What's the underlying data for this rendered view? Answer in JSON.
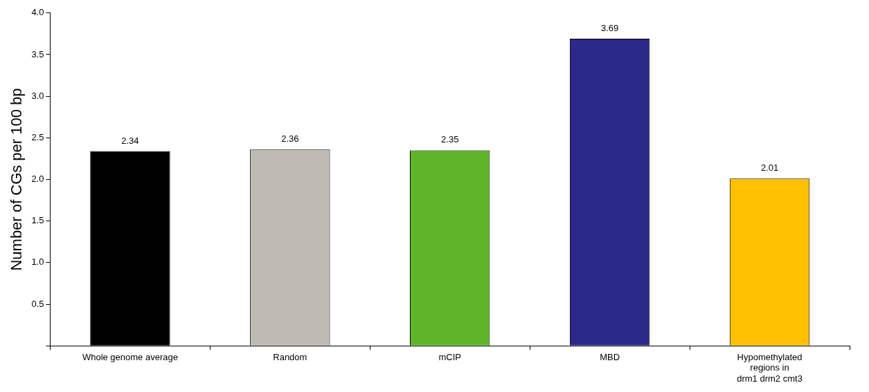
{
  "chart_data": {
    "type": "bar",
    "ylabel": "Number of CGs per 100 bp",
    "categories": [
      "Whole genome average",
      "Random",
      "mCIP",
      "MBD",
      "Hypomethylated regions in drm1 drm2 cmt3"
    ],
    "values": [
      2.34,
      2.36,
      2.35,
      3.69,
      2.01
    ],
    "colors": [
      "#000000",
      "#bfbab3",
      "#5fb52a",
      "#2b2a8a",
      "#ffc000"
    ],
    "ylim": [
      0,
      4.0
    ],
    "yticks": [
      {
        "value": 0,
        "label": null
      },
      {
        "value": 0.5,
        "label": "0.5"
      },
      {
        "value": 1.0,
        "label": "1.0"
      },
      {
        "value": 1.5,
        "label": "1.5"
      },
      {
        "value": 2.0,
        "label": "2.0"
      },
      {
        "value": 2.5,
        "label": "2.5"
      },
      {
        "value": 3.0,
        "label": "3.0"
      },
      {
        "value": 3.5,
        "label": "3.5"
      },
      {
        "value": 4.0,
        "label": "4.0"
      }
    ],
    "grid": false,
    "legend": false,
    "data_labels": true
  }
}
